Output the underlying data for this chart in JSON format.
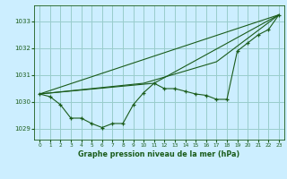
{
  "title": "Graphe pression niveau de la mer (hPa)",
  "bg_color": "#cceeff",
  "grid_color": "#99cccc",
  "line_color": "#1a5c1a",
  "xlim": [
    -0.5,
    23.5
  ],
  "ylim": [
    1028.6,
    1033.6
  ],
  "yticks": [
    1029,
    1030,
    1031,
    1032,
    1033
  ],
  "xticks": [
    0,
    1,
    2,
    3,
    4,
    5,
    6,
    7,
    8,
    9,
    10,
    11,
    12,
    13,
    14,
    15,
    16,
    17,
    18,
    19,
    20,
    21,
    22,
    23
  ],
  "main_x": [
    0,
    1,
    2,
    3,
    4,
    5,
    6,
    7,
    8,
    9,
    10,
    11,
    12,
    13,
    14,
    15,
    16,
    17,
    18,
    19,
    20,
    21,
    22,
    23
  ],
  "main_y": [
    1030.3,
    1030.2,
    1029.9,
    1029.4,
    1029.4,
    1029.2,
    1029.05,
    1029.2,
    1029.2,
    1029.9,
    1030.35,
    1030.7,
    1030.5,
    1030.5,
    1030.4,
    1030.3,
    1030.25,
    1030.1,
    1030.1,
    1031.9,
    1032.2,
    1032.5,
    1032.7,
    1033.25
  ],
  "line1_x": [
    0,
    23
  ],
  "line1_y": [
    1030.3,
    1033.25
  ],
  "line2_x": [
    0,
    11,
    23
  ],
  "line2_y": [
    1030.3,
    1030.7,
    1033.25
  ],
  "line3_x": [
    0,
    10,
    17,
    23
  ],
  "line3_y": [
    1030.3,
    1030.7,
    1031.5,
    1033.25
  ]
}
